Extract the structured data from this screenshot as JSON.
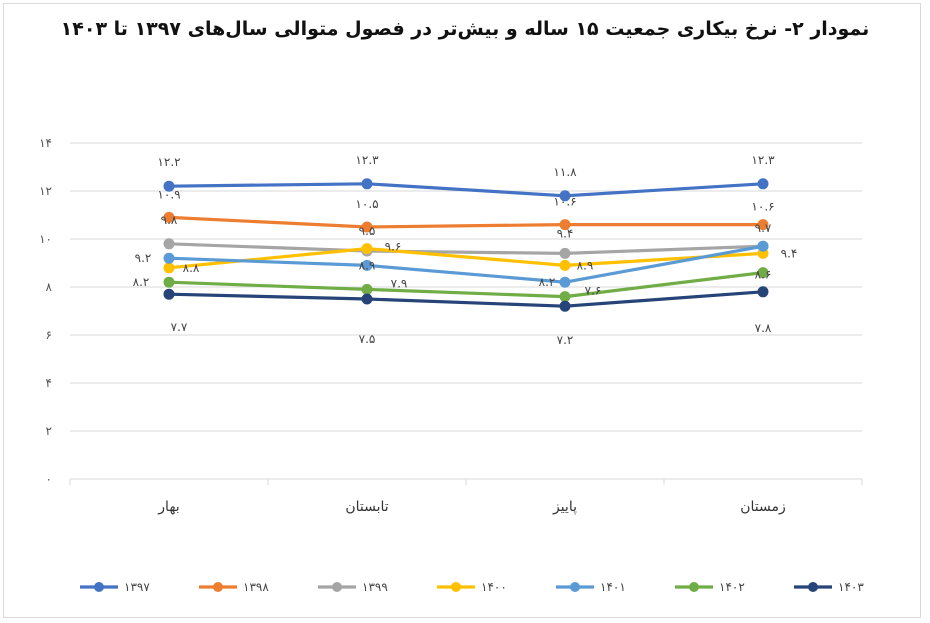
{
  "chart_data": {
    "type": "line",
    "title": "نمودار ۲- نرخ بیکاری جمعیت ۱۵ ساله و بیش‌تر در فصول متوالی سال‌های ۱۳۹۷ تا ۱۴۰۳",
    "categories": [
      "بهار",
      "تابستان",
      "پاییز",
      "زمستان"
    ],
    "ylim": [
      0,
      14
    ],
    "yticks": [
      0,
      2,
      4,
      6,
      8,
      10,
      12,
      14
    ],
    "ytick_labels": [
      "۰",
      "۲",
      "۴",
      "۶",
      "۸",
      "۱۰",
      "۱۲",
      "۱۴"
    ],
    "grid": true,
    "legend_position": "bottom",
    "series": [
      {
        "name": "۱۳۹۷",
        "color": "#4472C4",
        "values": [
          12.2,
          12.3,
          11.8,
          12.3
        ],
        "labels": [
          "۱۲.۲",
          "۱۲.۳",
          "۱۱.۸",
          "۱۲.۳"
        ]
      },
      {
        "name": "۱۳۹۸",
        "color": "#ED7D31",
        "values": [
          10.9,
          10.5,
          10.6,
          10.6
        ],
        "labels": [
          "۱۰.۹",
          "۱۰.۵",
          "۱۰.۶",
          "۱۰.۶"
        ]
      },
      {
        "name": "۱۳۹۹",
        "color": "#A5A5A5",
        "values": [
          9.8,
          9.5,
          9.4,
          9.7
        ],
        "labels": [
          "۹.۸",
          "۹.۵",
          "۹.۴",
          "۹.۷"
        ]
      },
      {
        "name": "۱۴۰۰",
        "color": "#FFC000",
        "values": [
          8.8,
          9.6,
          8.9,
          9.4
        ],
        "labels": [
          "۸.۸",
          "۹.۶",
          "۸.۹",
          "۹.۴"
        ]
      },
      {
        "name": "۱۴۰۱",
        "color": "#5B9BD5",
        "values": [
          9.2,
          8.9,
          8.2,
          9.7
        ],
        "labels": [
          "۹.۲",
          "۸.۹",
          "۸.۲",
          "۹.۷"
        ]
      },
      {
        "name": "۱۴۰۲",
        "color": "#70AD47",
        "values": [
          8.2,
          7.9,
          7.6,
          8.6
        ],
        "labels": [
          "۸.۲",
          "۷.۹",
          "۷.۶",
          "۸.۶"
        ]
      },
      {
        "name": "۱۴۰۳",
        "color": "#264478",
        "values": [
          7.7,
          7.5,
          7.2,
          7.8
        ],
        "labels": [
          "۷.۷",
          "۷.۵",
          "۷.۲",
          "۷.۸"
        ]
      }
    ]
  }
}
